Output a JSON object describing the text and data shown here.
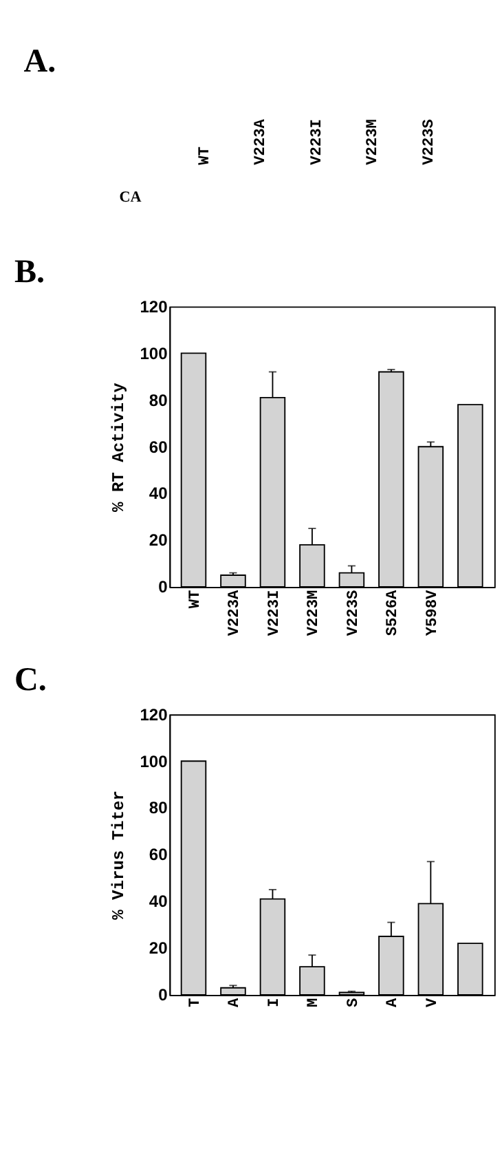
{
  "chart_data": [
    {
      "type": "other",
      "title": "A.",
      "categories": [
        "WT",
        "V223A",
        "V223I",
        "V223M",
        "V223S"
      ],
      "annotations": [
        "CA"
      ]
    },
    {
      "type": "bar",
      "title": "B.",
      "ylabel": "% RT Activity",
      "categories": [
        "WT",
        "V223A",
        "V223I",
        "V223M",
        "V223S",
        "S526A",
        "Y598V",
        null
      ],
      "values": [
        100,
        5,
        81,
        18,
        6,
        92,
        60,
        78
      ],
      "errors": [
        null,
        [
          5,
          6
        ],
        [
          81,
          92
        ],
        [
          18,
          25
        ],
        [
          6,
          9
        ],
        [
          92,
          93
        ],
        [
          60,
          62
        ],
        null
      ],
      "color": "#d3d3d3",
      "ylim": [
        0,
        120
      ],
      "yticks": [
        0,
        20,
        40,
        60,
        80,
        100,
        120
      ],
      "grid": false
    },
    {
      "type": "bar",
      "title": "C.",
      "ylabel": "% Virus Titer",
      "categories": [
        "T",
        "A",
        "I",
        "M",
        "S",
        "A",
        "V",
        null
      ],
      "values": [
        100,
        3,
        41,
        12,
        1,
        25,
        39,
        22
      ],
      "errors": [
        null,
        [
          3,
          4
        ],
        [
          41,
          45
        ],
        [
          12,
          17
        ],
        [
          1,
          1.5
        ],
        [
          25,
          31
        ],
        [
          39,
          57
        ],
        null
      ],
      "color": "#d3d3d3",
      "ylim": [
        0,
        120
      ],
      "yticks": [
        0,
        20,
        40,
        60,
        80,
        100,
        120
      ],
      "grid": false
    }
  ]
}
